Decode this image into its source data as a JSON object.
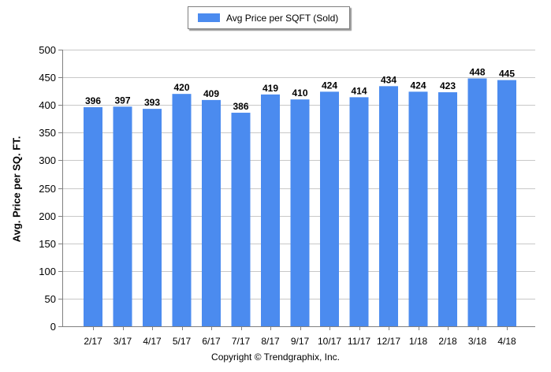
{
  "legend": {
    "label": "Avg Price per SQFT (Sold)"
  },
  "copyright": "Copyright © Trendgraphix, Inc.",
  "colors": {
    "bar": "#4b8bef",
    "grid": "#c8c8c8",
    "axis": "#808080"
  },
  "chart_data": {
    "type": "bar",
    "categories": [
      "2/17",
      "3/17",
      "4/17",
      "5/17",
      "6/17",
      "7/17",
      "8/17",
      "9/17",
      "10/17",
      "11/17",
      "12/17",
      "1/18",
      "2/18",
      "3/18",
      "4/18"
    ],
    "series": [
      {
        "name": "Avg Price per SQFT (Sold)",
        "values": [
          396,
          397,
          393,
          420,
          409,
          386,
          419,
          410,
          424,
          414,
          434,
          424,
          423,
          448,
          445
        ]
      }
    ],
    "ylabel": "Avg. Price per SQ. FT.",
    "xlabel": "",
    "ylim": [
      0,
      500
    ],
    "yticks": [
      0,
      50,
      100,
      150,
      200,
      250,
      300,
      350,
      400,
      450,
      500
    ],
    "grid": true,
    "data_labels": true,
    "legend_position": "top-center"
  }
}
